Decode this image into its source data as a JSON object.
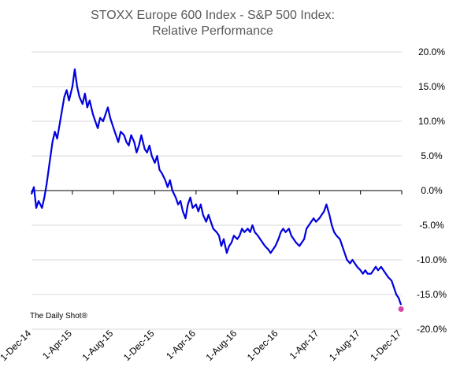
{
  "chart_data": {
    "type": "line",
    "title_lines": [
      "STOXX Europe 600 Index  - S&P 500 Index:",
      "Relative Performance"
    ],
    "y_axis_position": "right",
    "ylim": [
      -20,
      20
    ],
    "y_ticks": [
      20,
      15,
      10,
      5,
      0,
      -5,
      -10,
      -15,
      -20
    ],
    "y_tick_labels": [
      "20.0%",
      "15.0%",
      "10.0%",
      "5.0%",
      "0.0%",
      "-5.0%",
      "-10.0%",
      "-15.0%",
      "-20.0%"
    ],
    "x_range": [
      "2014-12-01",
      "2017-12-01"
    ],
    "x_tick_labels": [
      "1-Dec-14",
      "1-Apr-15",
      "1-Aug-15",
      "1-Dec-15",
      "1-Apr-16",
      "1-Aug-16",
      "1-Dec-16",
      "1-Apr-17",
      "1-Aug-17",
      "1-Dec-17"
    ],
    "x_tick_dates": [
      "2014-12-01",
      "2015-04-01",
      "2015-08-01",
      "2015-12-01",
      "2016-04-01",
      "2016-08-01",
      "2016-12-01",
      "2017-04-01",
      "2017-08-01",
      "2017-12-01"
    ],
    "gridlines": "horizontal",
    "series": [
      {
        "color": "#0000e0",
        "points": [
          [
            "2014-12-01",
            -0.5
          ],
          [
            "2014-12-08",
            0.5
          ],
          [
            "2014-12-15",
            -2.5
          ],
          [
            "2014-12-22",
            -1.5
          ],
          [
            "2015-01-01",
            -2.5
          ],
          [
            "2015-01-08",
            -1.0
          ],
          [
            "2015-01-15",
            1.0
          ],
          [
            "2015-01-22",
            3.5
          ],
          [
            "2015-02-01",
            7.0
          ],
          [
            "2015-02-08",
            8.5
          ],
          [
            "2015-02-15",
            7.5
          ],
          [
            "2015-02-22",
            9.5
          ],
          [
            "2015-03-01",
            11.5
          ],
          [
            "2015-03-08",
            13.5
          ],
          [
            "2015-03-15",
            14.5
          ],
          [
            "2015-03-22",
            13.0
          ],
          [
            "2015-04-01",
            15.0
          ],
          [
            "2015-04-08",
            17.5
          ],
          [
            "2015-04-15",
            15.0
          ],
          [
            "2015-04-22",
            13.5
          ],
          [
            "2015-05-01",
            12.5
          ],
          [
            "2015-05-08",
            14.0
          ],
          [
            "2015-05-15",
            12.0
          ],
          [
            "2015-05-22",
            13.0
          ],
          [
            "2015-06-01",
            11.0
          ],
          [
            "2015-06-08",
            10.0
          ],
          [
            "2015-06-15",
            9.0
          ],
          [
            "2015-06-22",
            10.5
          ],
          [
            "2015-07-01",
            10.0
          ],
          [
            "2015-07-08",
            11.0
          ],
          [
            "2015-07-15",
            12.0
          ],
          [
            "2015-07-22",
            10.5
          ],
          [
            "2015-08-01",
            9.0
          ],
          [
            "2015-08-08",
            8.0
          ],
          [
            "2015-08-15",
            7.0
          ],
          [
            "2015-08-22",
            8.5
          ],
          [
            "2015-09-01",
            8.0
          ],
          [
            "2015-09-08",
            7.0
          ],
          [
            "2015-09-15",
            6.5
          ],
          [
            "2015-09-22",
            8.0
          ],
          [
            "2015-10-01",
            7.0
          ],
          [
            "2015-10-08",
            5.5
          ],
          [
            "2015-10-15",
            6.5
          ],
          [
            "2015-10-22",
            8.0
          ],
          [
            "2015-11-01",
            6.0
          ],
          [
            "2015-11-08",
            5.5
          ],
          [
            "2015-11-15",
            6.5
          ],
          [
            "2015-11-22",
            5.0
          ],
          [
            "2015-12-01",
            4.0
          ],
          [
            "2015-12-08",
            5.0
          ],
          [
            "2015-12-15",
            3.0
          ],
          [
            "2015-12-22",
            2.5
          ],
          [
            "2016-01-01",
            1.5
          ],
          [
            "2016-01-08",
            0.5
          ],
          [
            "2016-01-15",
            1.5
          ],
          [
            "2016-01-22",
            0.0
          ],
          [
            "2016-02-01",
            -1.0
          ],
          [
            "2016-02-08",
            -2.0
          ],
          [
            "2016-02-15",
            -1.5
          ],
          [
            "2016-02-22",
            -3.0
          ],
          [
            "2016-03-01",
            -4.0
          ],
          [
            "2016-03-08",
            -2.0
          ],
          [
            "2016-03-15",
            -1.0
          ],
          [
            "2016-03-22",
            -2.5
          ],
          [
            "2016-04-01",
            -2.0
          ],
          [
            "2016-04-08",
            -3.0
          ],
          [
            "2016-04-15",
            -2.0
          ],
          [
            "2016-04-22",
            -3.5
          ],
          [
            "2016-05-01",
            -4.5
          ],
          [
            "2016-05-08",
            -3.5
          ],
          [
            "2016-05-15",
            -4.5
          ],
          [
            "2016-05-22",
            -5.5
          ],
          [
            "2016-06-01",
            -6.0
          ],
          [
            "2016-06-08",
            -6.5
          ],
          [
            "2016-06-15",
            -8.0
          ],
          [
            "2016-06-22",
            -7.0
          ],
          [
            "2016-07-01",
            -9.0
          ],
          [
            "2016-07-08",
            -8.0
          ],
          [
            "2016-07-15",
            -7.5
          ],
          [
            "2016-07-22",
            -6.5
          ],
          [
            "2016-08-01",
            -7.0
          ],
          [
            "2016-08-08",
            -6.5
          ],
          [
            "2016-08-15",
            -5.5
          ],
          [
            "2016-08-22",
            -6.0
          ],
          [
            "2016-09-01",
            -5.5
          ],
          [
            "2016-09-08",
            -6.0
          ],
          [
            "2016-09-15",
            -5.0
          ],
          [
            "2016-09-22",
            -6.0
          ],
          [
            "2016-10-01",
            -6.5
          ],
          [
            "2016-10-08",
            -7.0
          ],
          [
            "2016-10-15",
            -7.5
          ],
          [
            "2016-10-22",
            -8.0
          ],
          [
            "2016-11-01",
            -8.5
          ],
          [
            "2016-11-08",
            -9.0
          ],
          [
            "2016-11-15",
            -8.5
          ],
          [
            "2016-11-22",
            -8.0
          ],
          [
            "2016-12-01",
            -7.0
          ],
          [
            "2016-12-08",
            -6.0
          ],
          [
            "2016-12-15",
            -5.5
          ],
          [
            "2016-12-22",
            -6.0
          ],
          [
            "2017-01-01",
            -5.5
          ],
          [
            "2017-01-08",
            -6.5
          ],
          [
            "2017-01-15",
            -7.0
          ],
          [
            "2017-01-22",
            -7.5
          ],
          [
            "2017-02-01",
            -8.0
          ],
          [
            "2017-02-08",
            -7.5
          ],
          [
            "2017-02-15",
            -7.0
          ],
          [
            "2017-02-22",
            -5.5
          ],
          [
            "2017-03-01",
            -5.0
          ],
          [
            "2017-03-08",
            -4.5
          ],
          [
            "2017-03-15",
            -4.0
          ],
          [
            "2017-03-22",
            -4.5
          ],
          [
            "2017-04-01",
            -4.0
          ],
          [
            "2017-04-08",
            -3.5
          ],
          [
            "2017-04-15",
            -3.0
          ],
          [
            "2017-04-22",
            -2.0
          ],
          [
            "2017-05-01",
            -3.5
          ],
          [
            "2017-05-08",
            -5.0
          ],
          [
            "2017-05-15",
            -6.0
          ],
          [
            "2017-05-22",
            -6.5
          ],
          [
            "2017-06-01",
            -7.0
          ],
          [
            "2017-06-08",
            -8.0
          ],
          [
            "2017-06-15",
            -9.0
          ],
          [
            "2017-06-22",
            -10.0
          ],
          [
            "2017-07-01",
            -10.5
          ],
          [
            "2017-07-08",
            -10.0
          ],
          [
            "2017-07-15",
            -10.5
          ],
          [
            "2017-07-22",
            -11.0
          ],
          [
            "2017-08-01",
            -11.5
          ],
          [
            "2017-08-08",
            -12.0
          ],
          [
            "2017-08-15",
            -11.5
          ],
          [
            "2017-08-22",
            -12.0
          ],
          [
            "2017-09-01",
            -12.0
          ],
          [
            "2017-09-08",
            -11.5
          ],
          [
            "2017-09-15",
            -11.0
          ],
          [
            "2017-09-22",
            -11.5
          ],
          [
            "2017-10-01",
            -11.0
          ],
          [
            "2017-10-08",
            -11.5
          ],
          [
            "2017-10-15",
            -12.0
          ],
          [
            "2017-10-22",
            -12.5
          ],
          [
            "2017-11-01",
            -13.0
          ],
          [
            "2017-11-08",
            -14.0
          ],
          [
            "2017-11-15",
            -15.0
          ],
          [
            "2017-11-22",
            -15.5
          ],
          [
            "2017-11-29",
            -16.5
          ]
        ]
      }
    ],
    "end_marker": {
      "date": "2017-11-29",
      "value": -17.1,
      "color": "#d946a8"
    }
  },
  "source_label": "The Daily Shot®"
}
